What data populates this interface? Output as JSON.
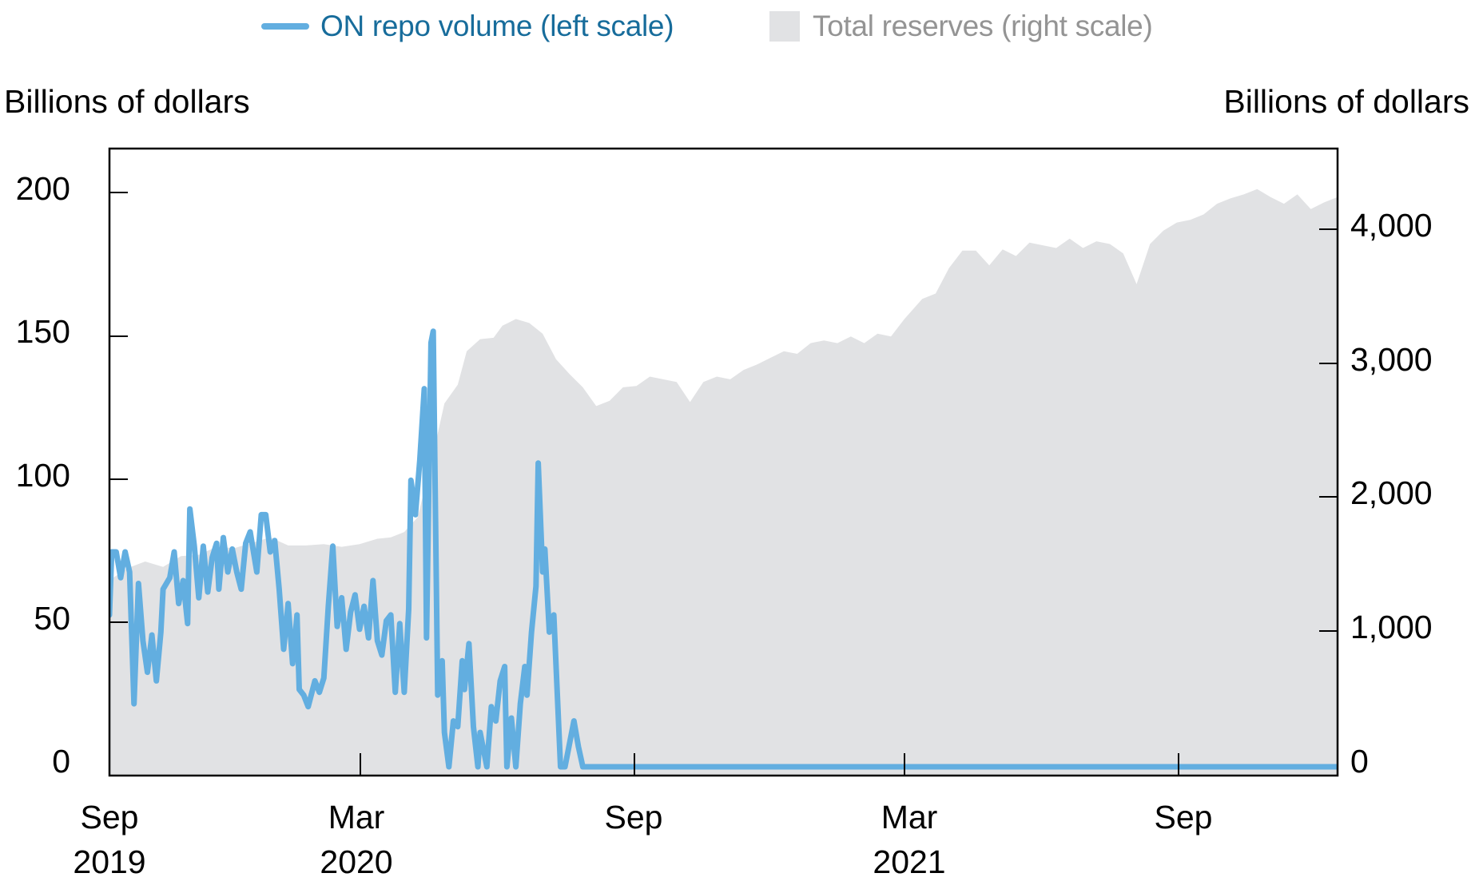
{
  "legend": {
    "items": [
      {
        "label": "ON repo volume (left scale)",
        "type": "line",
        "color": "#62AEE0",
        "text_color": "#176C9B"
      },
      {
        "label": "Total reserves (right scale)",
        "type": "area",
        "color": "#E1E2E4",
        "text_color": "#949494"
      }
    ]
  },
  "axes": {
    "left_title": "Billions of dollars",
    "right_title": "Billions of dollars",
    "left_ticks": [
      "0",
      "50",
      "100",
      "150",
      "200"
    ],
    "right_ticks": [
      "0",
      "1,000",
      "2,000",
      "3,000",
      "4,000"
    ],
    "x_ticks": [
      {
        "month": "Sep",
        "year": "2019"
      },
      {
        "month": "Mar",
        "year": "2020"
      },
      {
        "month": "Sep",
        "year": ""
      },
      {
        "month": "Mar",
        "year": "2021"
      },
      {
        "month": "Sep",
        "year": ""
      }
    ]
  },
  "chart_data": {
    "type": "line",
    "title": "",
    "xlabel": "",
    "ylabel": "Billions of dollars",
    "y2label": "Billions of dollars",
    "ylim": [
      0,
      215
    ],
    "y2lim": [
      0,
      4700
    ],
    "x_range": [
      "Sep 2019",
      "Dec 2021"
    ],
    "x_unit": "months since Sep 2019",
    "x_tick_positions": [
      0,
      6,
      12,
      18,
      24
    ],
    "x_tick_labels": [
      "Sep 2019",
      "Mar 2020",
      "Sep",
      "Mar 2021",
      "Sep"
    ],
    "grid": false,
    "legend_position": "top",
    "series": [
      {
        "name": "ON repo volume (left scale)",
        "axis": "left",
        "type": "line",
        "color": "#62AEE0",
        "points": [
          [
            0.0,
            53
          ],
          [
            0.05,
            75
          ],
          [
            0.15,
            75
          ],
          [
            0.25,
            66
          ],
          [
            0.35,
            75
          ],
          [
            0.45,
            68
          ],
          [
            0.55,
            22
          ],
          [
            0.65,
            64
          ],
          [
            0.75,
            44
          ],
          [
            0.85,
            33
          ],
          [
            0.95,
            46
          ],
          [
            1.05,
            30
          ],
          [
            1.15,
            47
          ],
          [
            1.2,
            62
          ],
          [
            1.35,
            66
          ],
          [
            1.45,
            75
          ],
          [
            1.55,
            57
          ],
          [
            1.65,
            65
          ],
          [
            1.75,
            50
          ],
          [
            1.8,
            90
          ],
          [
            1.9,
            77
          ],
          [
            2.0,
            59
          ],
          [
            2.1,
            77
          ],
          [
            2.2,
            61
          ],
          [
            2.3,
            73
          ],
          [
            2.4,
            78
          ],
          [
            2.45,
            62
          ],
          [
            2.55,
            80
          ],
          [
            2.65,
            68
          ],
          [
            2.75,
            76
          ],
          [
            2.85,
            68
          ],
          [
            2.95,
            62
          ],
          [
            3.05,
            78
          ],
          [
            3.15,
            82
          ],
          [
            3.3,
            68
          ],
          [
            3.4,
            88
          ],
          [
            3.5,
            88
          ],
          [
            3.6,
            75
          ],
          [
            3.7,
            79
          ],
          [
            3.8,
            62
          ],
          [
            3.9,
            41
          ],
          [
            4.0,
            57
          ],
          [
            4.1,
            36
          ],
          [
            4.2,
            53
          ],
          [
            4.25,
            27
          ],
          [
            4.35,
            25
          ],
          [
            4.45,
            21
          ],
          [
            4.6,
            30
          ],
          [
            4.7,
            26
          ],
          [
            4.8,
            31
          ],
          [
            4.9,
            56
          ],
          [
            5.0,
            77
          ],
          [
            5.1,
            49
          ],
          [
            5.2,
            59
          ],
          [
            5.3,
            41
          ],
          [
            5.4,
            54
          ],
          [
            5.5,
            60
          ],
          [
            5.6,
            48
          ],
          [
            5.7,
            56
          ],
          [
            5.8,
            45
          ],
          [
            5.9,
            65
          ],
          [
            6.0,
            44
          ],
          [
            6.1,
            39
          ],
          [
            6.2,
            51
          ],
          [
            6.3,
            53
          ],
          [
            6.4,
            26
          ],
          [
            6.5,
            50
          ],
          [
            6.6,
            26
          ],
          [
            6.7,
            55
          ],
          [
            6.75,
            100
          ],
          [
            6.85,
            88
          ],
          [
            6.95,
            107
          ],
          [
            7.05,
            132
          ],
          [
            7.1,
            45
          ],
          [
            7.2,
            148
          ],
          [
            7.25,
            152
          ],
          [
            7.35,
            25
          ],
          [
            7.45,
            37
          ],
          [
            7.5,
            12
          ],
          [
            7.6,
            0
          ],
          [
            7.7,
            16
          ],
          [
            7.8,
            14
          ],
          [
            7.9,
            37
          ],
          [
            7.95,
            27
          ],
          [
            8.05,
            43
          ],
          [
            8.15,
            14
          ],
          [
            8.25,
            0
          ],
          [
            8.3,
            12
          ],
          [
            8.45,
            0
          ],
          [
            8.55,
            21
          ],
          [
            8.65,
            16
          ],
          [
            8.75,
            30
          ],
          [
            8.85,
            35
          ],
          [
            8.9,
            0
          ],
          [
            9.0,
            17
          ],
          [
            9.1,
            0
          ],
          [
            9.2,
            22
          ],
          [
            9.3,
            35
          ],
          [
            9.35,
            25
          ],
          [
            9.45,
            47
          ],
          [
            9.55,
            63
          ],
          [
            9.6,
            106
          ],
          [
            9.7,
            68
          ],
          [
            9.75,
            76
          ],
          [
            9.85,
            47
          ],
          [
            9.95,
            53
          ],
          [
            10.1,
            0
          ],
          [
            10.2,
            0
          ],
          [
            10.3,
            8
          ],
          [
            10.4,
            16
          ],
          [
            10.5,
            7
          ],
          [
            10.6,
            0
          ],
          [
            11.0,
            0
          ],
          [
            27.5,
            0
          ]
        ]
      },
      {
        "name": "Total reserves (right scale)",
        "axis": "right",
        "type": "area",
        "color": "#E1E2E4",
        "points": [
          [
            0.0,
            1380
          ],
          [
            0.4,
            1470
          ],
          [
            0.8,
            1520
          ],
          [
            1.2,
            1480
          ],
          [
            1.6,
            1560
          ],
          [
            2.0,
            1570
          ],
          [
            2.4,
            1630
          ],
          [
            2.8,
            1620
          ],
          [
            3.2,
            1660
          ],
          [
            3.6,
            1700
          ],
          [
            4.0,
            1640
          ],
          [
            4.4,
            1640
          ],
          [
            4.8,
            1650
          ],
          [
            5.2,
            1630
          ],
          [
            5.6,
            1650
          ],
          [
            6.0,
            1690
          ],
          [
            6.3,
            1700
          ],
          [
            6.6,
            1740
          ],
          [
            6.9,
            1850
          ],
          [
            7.2,
            2250
          ],
          [
            7.5,
            2700
          ],
          [
            7.8,
            2840
          ],
          [
            8.0,
            3090
          ],
          [
            8.3,
            3180
          ],
          [
            8.6,
            3190
          ],
          [
            8.8,
            3280
          ],
          [
            9.1,
            3330
          ],
          [
            9.4,
            3300
          ],
          [
            9.7,
            3220
          ],
          [
            10.0,
            3030
          ],
          [
            10.3,
            2920
          ],
          [
            10.6,
            2820
          ],
          [
            10.9,
            2680
          ],
          [
            11.2,
            2720
          ],
          [
            11.5,
            2820
          ],
          [
            11.8,
            2830
          ],
          [
            12.1,
            2900
          ],
          [
            12.4,
            2880
          ],
          [
            12.7,
            2860
          ],
          [
            13.0,
            2710
          ],
          [
            13.3,
            2860
          ],
          [
            13.6,
            2900
          ],
          [
            13.9,
            2880
          ],
          [
            14.2,
            2950
          ],
          [
            14.5,
            2990
          ],
          [
            14.8,
            3040
          ],
          [
            15.1,
            3090
          ],
          [
            15.4,
            3070
          ],
          [
            15.7,
            3150
          ],
          [
            16.0,
            3170
          ],
          [
            16.3,
            3150
          ],
          [
            16.6,
            3200
          ],
          [
            16.9,
            3150
          ],
          [
            17.2,
            3220
          ],
          [
            17.5,
            3200
          ],
          [
            17.8,
            3330
          ],
          [
            18.2,
            3480
          ],
          [
            18.5,
            3520
          ],
          [
            18.8,
            3710
          ],
          [
            19.1,
            3840
          ],
          [
            19.4,
            3840
          ],
          [
            19.7,
            3730
          ],
          [
            20.0,
            3850
          ],
          [
            20.3,
            3800
          ],
          [
            20.6,
            3900
          ],
          [
            20.9,
            3880
          ],
          [
            21.2,
            3860
          ],
          [
            21.5,
            3930
          ],
          [
            21.8,
            3860
          ],
          [
            22.1,
            3910
          ],
          [
            22.4,
            3890
          ],
          [
            22.7,
            3820
          ],
          [
            23.0,
            3590
          ],
          [
            23.3,
            3890
          ],
          [
            23.6,
            3990
          ],
          [
            23.9,
            4050
          ],
          [
            24.2,
            4070
          ],
          [
            24.5,
            4110
          ],
          [
            24.8,
            4190
          ],
          [
            25.1,
            4230
          ],
          [
            25.4,
            4260
          ],
          [
            25.7,
            4300
          ],
          [
            26.0,
            4240
          ],
          [
            26.3,
            4190
          ],
          [
            26.6,
            4260
          ],
          [
            26.9,
            4150
          ],
          [
            27.2,
            4200
          ],
          [
            27.5,
            4240
          ]
        ]
      }
    ]
  }
}
